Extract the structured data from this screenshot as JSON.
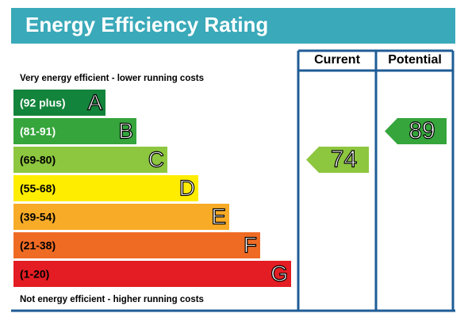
{
  "chart_data": {
    "type": "rating",
    "title": "Energy Efficiency Rating",
    "top_label": "Very energy efficient - lower running costs",
    "bottom_label": "Not energy efficient - higher running costs",
    "columns": [
      "Current",
      "Potential"
    ],
    "bands": [
      {
        "range": "(92 plus)",
        "letter": "A",
        "color": "#13843b",
        "text_color": "#ffffff"
      },
      {
        "range": "(81-91)",
        "letter": "B",
        "color": "#35a53c",
        "text_color": "#ffffff"
      },
      {
        "range": "(69-80)",
        "letter": "C",
        "color": "#8dc63f",
        "text_color": "#000000"
      },
      {
        "range": "(55-68)",
        "letter": "D",
        "color": "#ffed00",
        "text_color": "#000000"
      },
      {
        "range": "(39-54)",
        "letter": "E",
        "color": "#f8ab26",
        "text_color": "#000000"
      },
      {
        "range": "(21-38)",
        "letter": "F",
        "color": "#ef6b24",
        "text_color": "#000000"
      },
      {
        "range": "(1-20)",
        "letter": "G",
        "color": "#e31d23",
        "text_color": "#000000"
      }
    ],
    "ratings": [
      {
        "value": 74
      },
      {
        "value": 89
      }
    ]
  }
}
